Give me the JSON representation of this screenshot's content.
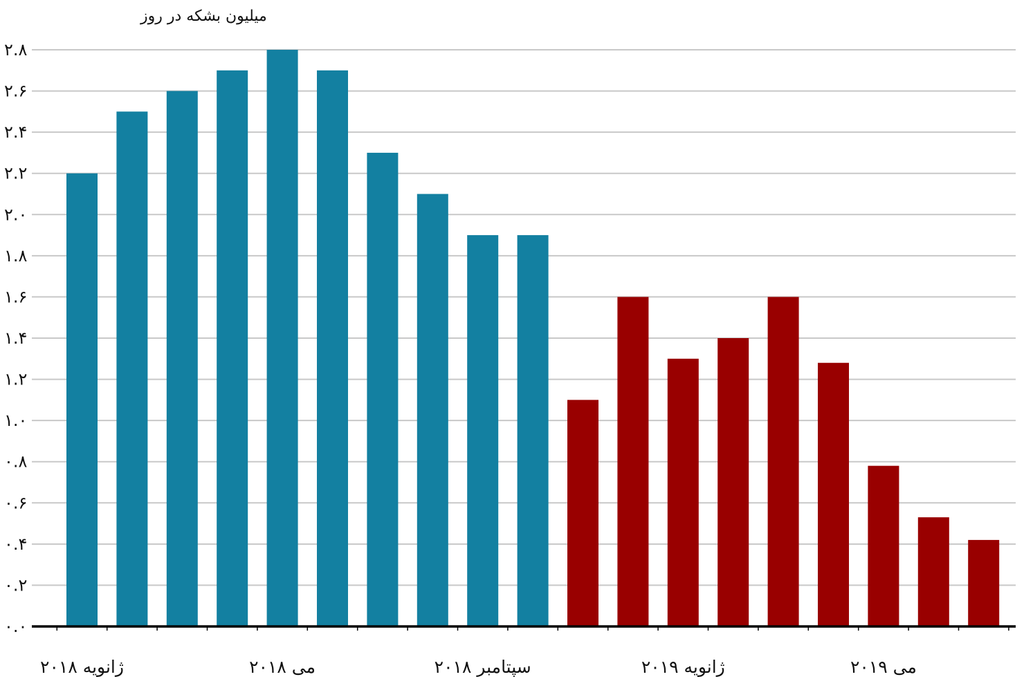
{
  "chart_data": {
    "type": "bar",
    "ylabel": "میلیون بشکه در روز",
    "xlabel": "",
    "ylim": [
      0,
      2.8
    ],
    "ytick_values": [
      0,
      0.2,
      0.4,
      0.6,
      0.8,
      1.0,
      1.2,
      1.4,
      1.6,
      1.8,
      2.0,
      2.2,
      2.4,
      2.6,
      2.8
    ],
    "ytick_labels": [
      "۰.۰",
      "۰.۲",
      "۰.۴",
      "۰.۶",
      "۰.۸",
      "۱.۰",
      "۱.۲",
      "۱.۴",
      "۱.۶",
      "۱.۸",
      "۲.۰",
      "۲.۲",
      "۲.۴",
      "۲.۶",
      "۲.۸"
    ],
    "x_labels": [
      {
        "label": "ژانویه ۲۰۱۸",
        "index": 0
      },
      {
        "label": "می ۲۰۱۸",
        "index": 4
      },
      {
        "label": "سپتامبر ۲۰۱۸",
        "index": 8
      },
      {
        "label": "ژانویه ۲۰۱۹",
        "index": 12
      },
      {
        "label": "می ۲۰۱۹",
        "index": 16
      }
    ],
    "values": [
      2.2,
      2.5,
      2.6,
      2.7,
      2.8,
      2.7,
      2.3,
      2.1,
      1.9,
      1.9,
      1.1,
      1.6,
      1.3,
      1.4,
      1.6,
      1.28,
      0.78,
      0.53,
      0.42
    ],
    "colors": {
      "first_period": "#1380a1",
      "second_period": "#990000"
    },
    "second_period_start_index": 10,
    "grid": true
  }
}
